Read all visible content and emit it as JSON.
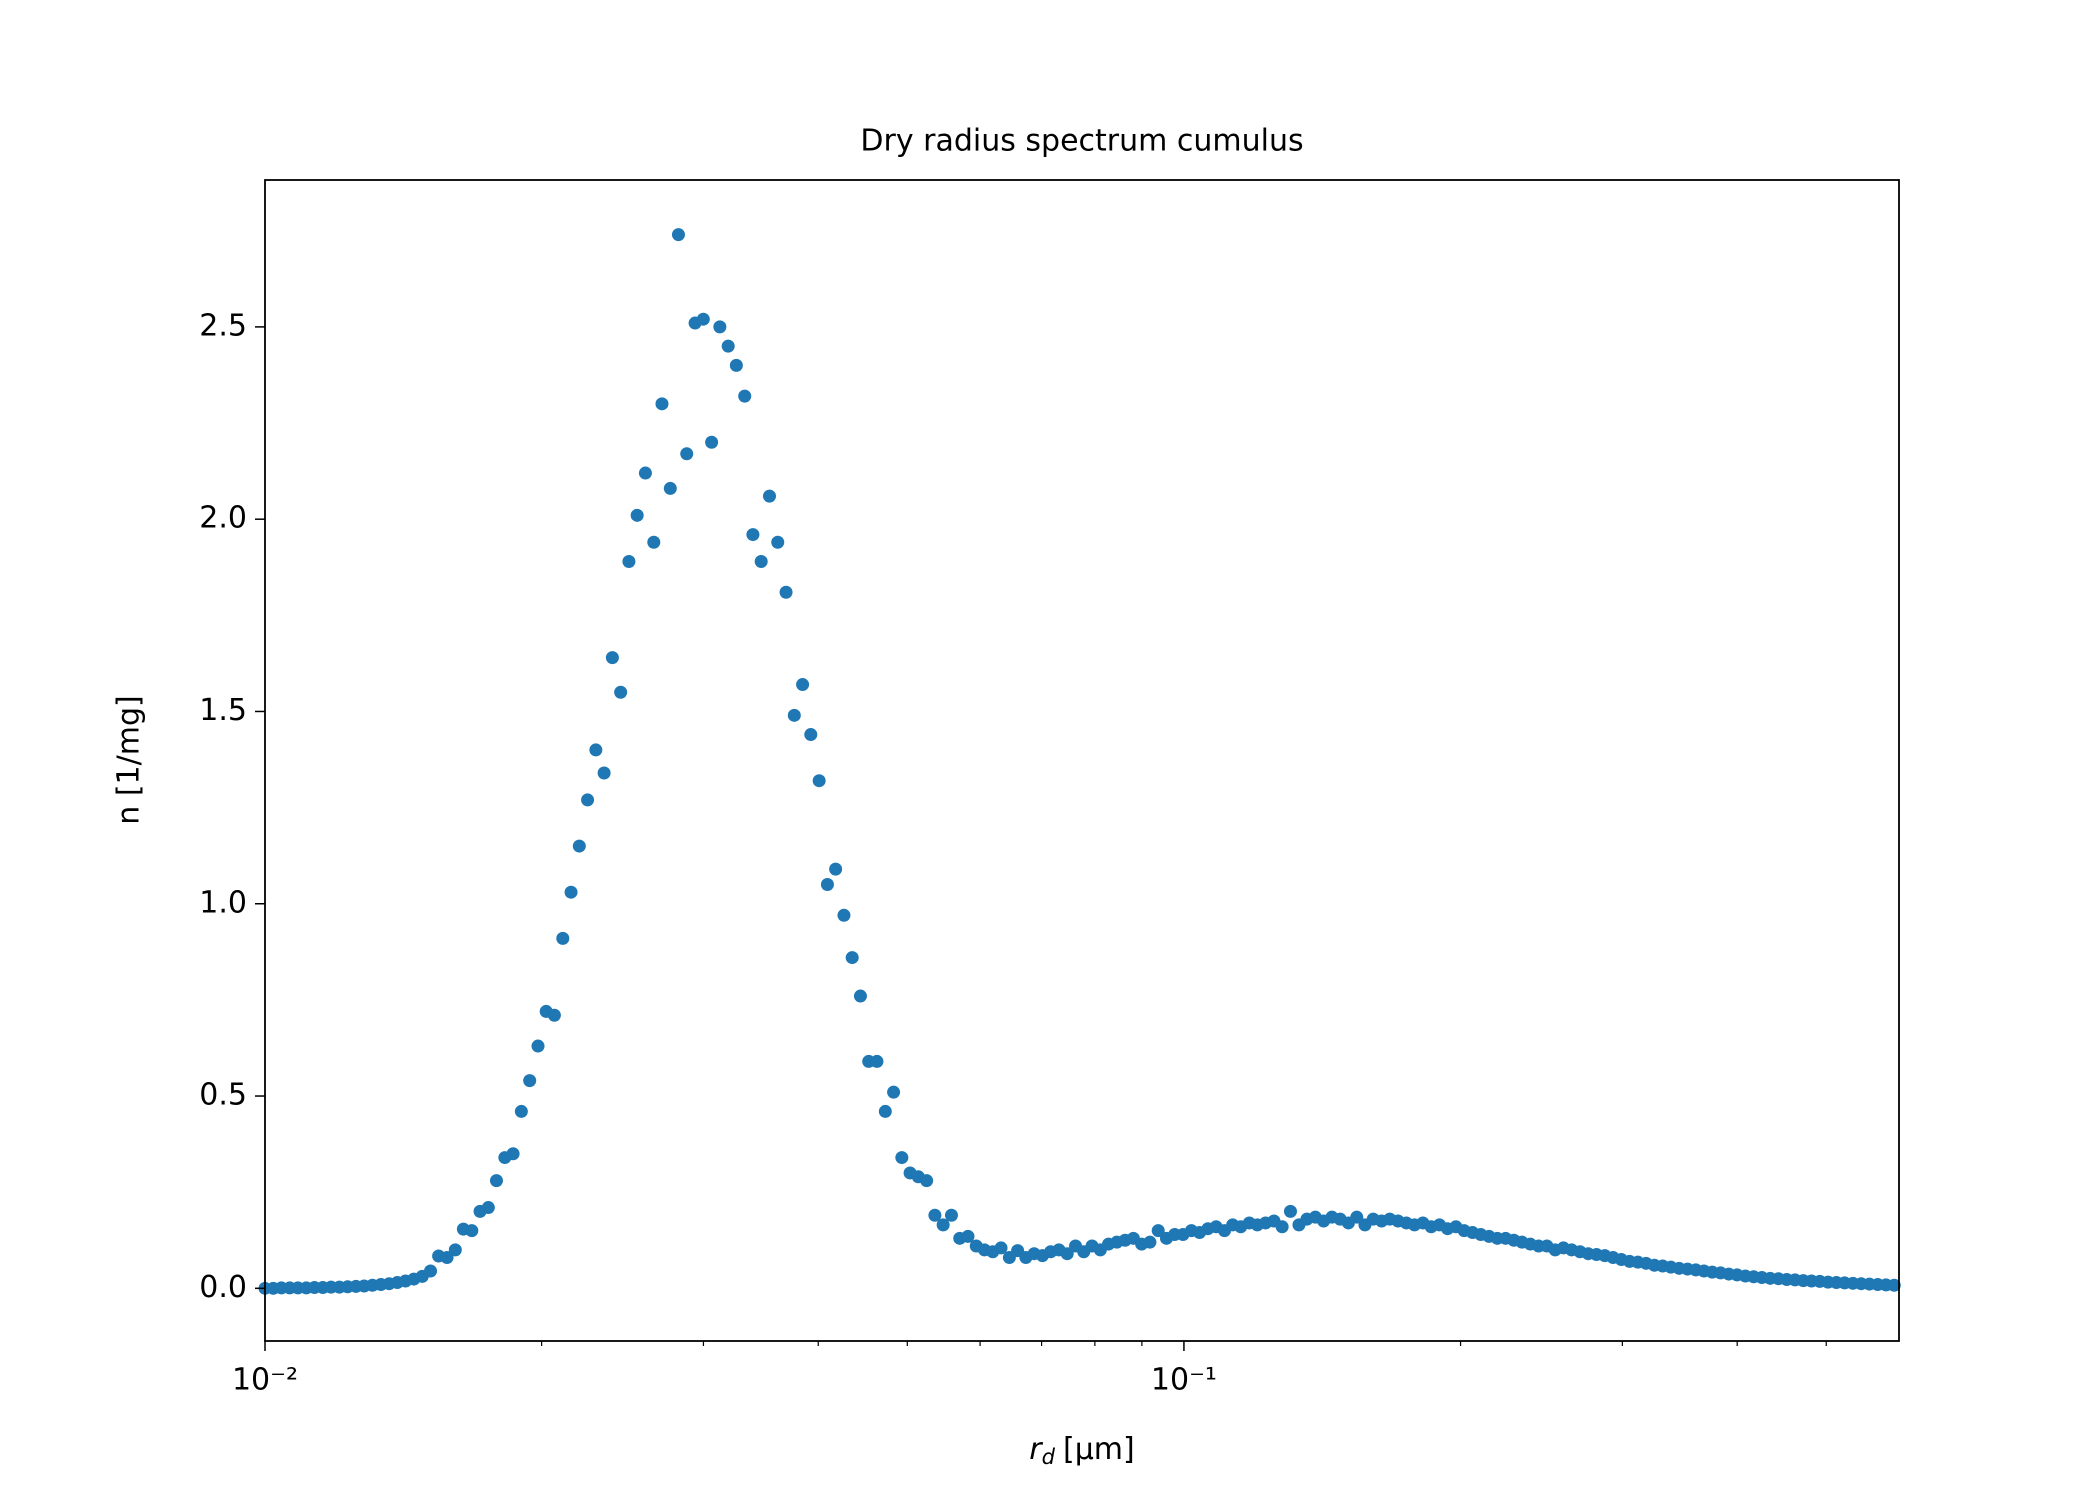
{
  "chart_data": {
    "type": "scatter",
    "title": "Dry radius spectrum cumulus",
    "xlabel": {
      "symbol": "r",
      "subscript": "d",
      "unit": "[μm]"
    },
    "ylabel": "n [1/mg]",
    "xscale": "log",
    "color": "#1f77b4",
    "xlim": [
      0.01,
      0.6
    ],
    "ylim": [
      -0.137,
      2.882
    ],
    "xticks": [
      {
        "value": 0.01,
        "label": "10⁻²"
      },
      {
        "value": 0.1,
        "label": "10⁻¹"
      }
    ],
    "xminorticks": [
      0.02,
      0.03,
      0.04,
      0.05,
      0.06,
      0.07,
      0.08,
      0.09,
      0.2,
      0.3,
      0.4,
      0.5
    ],
    "yticks": [
      {
        "value": 0,
        "label": "0.0"
      },
      0.5,
      {
        "value": 1,
        "label": "1.0"
      },
      1.5,
      {
        "value": 2,
        "label": "2.0"
      },
      2.5
    ],
    "x": [
      0.01,
      0.01021,
      0.01042,
      0.01064,
      0.01086,
      0.01109,
      0.01132,
      0.01156,
      0.0118,
      0.01205,
      0.0123,
      0.01256,
      0.01282,
      0.01309,
      0.01337,
      0.01365,
      0.01393,
      0.01422,
      0.01452,
      0.01483,
      0.01514,
      0.01545,
      0.01578,
      0.01611,
      0.01644,
      0.01679,
      0.01714,
      0.0175,
      0.01786,
      0.01824,
      0.01862,
      0.01901,
      0.01941,
      0.01982,
      0.02023,
      0.02065,
      0.02109,
      0.02153,
      0.02198,
      0.02244,
      0.02291,
      0.02339,
      0.02388,
      0.02438,
      0.02489,
      0.02541,
      0.02594,
      0.02649,
      0.02704,
      0.02761,
      0.02818,
      0.02877,
      0.02938,
      0.02999,
      0.03062,
      0.03126,
      0.03192,
      0.03258,
      0.03327,
      0.03396,
      0.03467,
      0.0354,
      0.03614,
      0.0369,
      0.03767,
      0.03846,
      0.03926,
      0.04009,
      0.04093,
      0.04178,
      0.04266,
      0.04355,
      0.04446,
      0.04539,
      0.04634,
      0.04732,
      0.04831,
      0.04932,
      0.05035,
      0.0514,
      0.05248,
      0.05358,
      0.0547,
      0.05585,
      0.05702,
      0.05821,
      0.05943,
      0.06067,
      0.06194,
      0.06324,
      0.06457,
      0.06592,
      0.0673,
      0.06871,
      0.07015,
      0.07161,
      0.07311,
      0.07464,
      0.07621,
      0.0778,
      0.07943,
      0.0811,
      0.08279,
      0.08453,
      0.0863,
      0.0881,
      0.08995,
      0.09183,
      0.09376,
      0.09572,
      0.09772,
      0.09977,
      0.1019,
      0.104,
      0.1062,
      0.1084,
      0.1107,
      0.113,
      0.1153,
      0.1178,
      0.1202,
      0.1227,
      0.1253,
      0.1279,
      0.1306,
      0.1334,
      0.1361,
      0.139,
      0.1419,
      0.1449,
      0.1479,
      0.151,
      0.1542,
      0.1574,
      0.1607,
      0.1641,
      0.1675,
      0.171,
      0.1746,
      0.1782,
      0.182,
      0.1858,
      0.1897,
      0.1936,
      0.1977,
      0.2018,
      0.2061,
      0.2104,
      0.2148,
      0.2193,
      0.2239,
      0.2286,
      0.2333,
      0.2382,
      0.2432,
      0.2483,
      0.2535,
      0.2588,
      0.2642,
      0.2698,
      0.2754,
      0.2812,
      0.2871,
      0.2931,
      0.2992,
      0.3055,
      0.3119,
      0.3184,
      0.3251,
      0.3319,
      0.3388,
      0.3459,
      0.3532,
      0.3606,
      0.3681,
      0.3758,
      0.3837,
      0.3917,
      0.3999,
      0.4083,
      0.4169,
      0.4256,
      0.4345,
      0.4436,
      0.4529,
      0.4624,
      0.4721,
      0.4819,
      0.492,
      0.5023,
      0.5129,
      0.5236,
      0.5346,
      0.5458,
      0.5572,
      0.5689,
      0.5808,
      0.5929
    ],
    "values": [
      0,
      0,
      0.001,
      0.001,
      0.001,
      0.001,
      0.002,
      0.002,
      0.003,
      0.003,
      0.004,
      0.005,
      0.006,
      0.008,
      0.01,
      0.012,
      0.015,
      0.019,
      0.024,
      0.031,
      0.045,
      0.084,
      0.08,
      0.1,
      0.154,
      0.15,
      0.2,
      0.21,
      0.28,
      0.34,
      0.35,
      0.46,
      0.54,
      0.63,
      0.72,
      0.71,
      0.91,
      1.03,
      1.15,
      1.27,
      1.4,
      1.34,
      1.64,
      1.55,
      1.89,
      2.01,
      2.12,
      1.94,
      2.3,
      2.08,
      2.74,
      2.17,
      2.51,
      2.52,
      2.2,
      2.5,
      2.45,
      2.4,
      2.32,
      1.96,
      1.89,
      2.06,
      1.94,
      1.81,
      1.49,
      1.57,
      1.44,
      1.32,
      1.05,
      1.09,
      0.97,
      0.86,
      0.76,
      0.59,
      0.59,
      0.46,
      0.51,
      0.34,
      0.3,
      0.29,
      0.28,
      0.19,
      0.165,
      0.19,
      0.13,
      0.135,
      0.11,
      0.1,
      0.095,
      0.105,
      0.08,
      0.098,
      0.08,
      0.09,
      0.085,
      0.095,
      0.1,
      0.09,
      0.11,
      0.095,
      0.11,
      0.1,
      0.115,
      0.12,
      0.125,
      0.13,
      0.115,
      0.12,
      0.15,
      0.13,
      0.14,
      0.14,
      0.15,
      0.145,
      0.155,
      0.16,
      0.15,
      0.165,
      0.16,
      0.17,
      0.165,
      0.17,
      0.175,
      0.16,
      0.2,
      0.165,
      0.18,
      0.185,
      0.175,
      0.185,
      0.18,
      0.17,
      0.185,
      0.165,
      0.18,
      0.175,
      0.18,
      0.175,
      0.17,
      0.165,
      0.17,
      0.16,
      0.165,
      0.155,
      0.16,
      0.15,
      0.145,
      0.14,
      0.135,
      0.13,
      0.13,
      0.125,
      0.12,
      0.115,
      0.11,
      0.11,
      0.1,
      0.105,
      0.1,
      0.095,
      0.09,
      0.088,
      0.085,
      0.08,
      0.075,
      0.07,
      0.068,
      0.065,
      0.06,
      0.058,
      0.055,
      0.052,
      0.05,
      0.048,
      0.045,
      0.042,
      0.04,
      0.037,
      0.035,
      0.032,
      0.03,
      0.028,
      0.026,
      0.025,
      0.023,
      0.022,
      0.02,
      0.019,
      0.018,
      0.016,
      0.015,
      0.014,
      0.013,
      0.012,
      0.011,
      0.01,
      0.009,
      0.008
    ]
  }
}
